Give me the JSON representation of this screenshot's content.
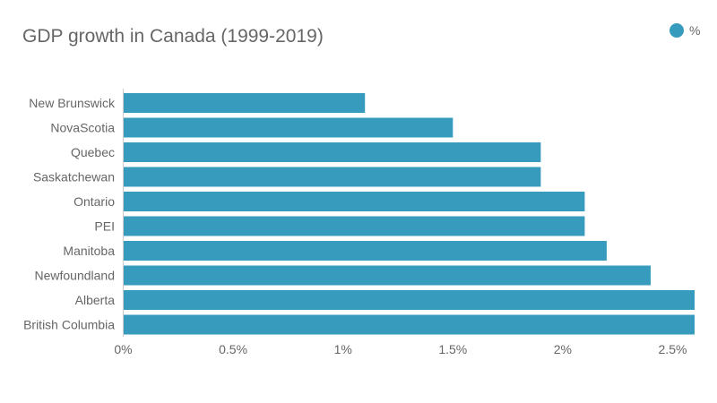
{
  "chart_data": {
    "type": "bar",
    "orientation": "horizontal",
    "title": "GDP growth in Canada (1999-2019)",
    "xlabel": "",
    "ylabel": "",
    "categories": [
      "New Brunswick",
      "NovaScotia",
      "Quebec",
      "Saskatchewan",
      "Ontario",
      "PEI",
      "Manitoba",
      "Newfoundland",
      "Alberta",
      "British Columbia"
    ],
    "series": [
      {
        "name": "%",
        "values": [
          1.1,
          1.5,
          1.9,
          1.9,
          2.1,
          2.1,
          2.2,
          2.4,
          2.6,
          2.6
        ]
      }
    ],
    "xlim": [
      0,
      2.6
    ],
    "x_ticks": [
      0,
      0.5,
      1,
      1.5,
      2,
      2.5
    ],
    "x_tick_labels": [
      "0%",
      "0.5%",
      "1%",
      "1.5%",
      "2%",
      "2.5%"
    ],
    "legend_position": "top-right",
    "grid": false,
    "colors": {
      "bar": "#369bbd",
      "text": "#666666",
      "axis": "#cccccc"
    }
  }
}
